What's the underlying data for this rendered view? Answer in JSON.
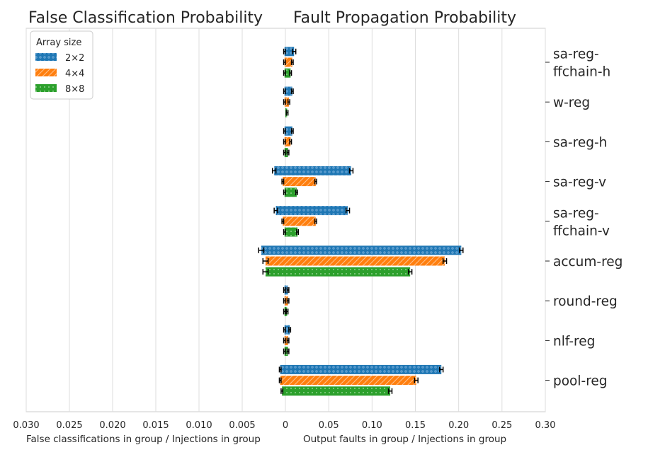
{
  "chart_data": {
    "type": "bar",
    "orientation": "horizontal",
    "titles": {
      "left": "False Classification Probability",
      "right": "Fault Propagation Probability"
    },
    "xlabels": {
      "left": "False classifications in group / Injections in group",
      "right": "Output faults in group / Injections in group"
    },
    "xlim_left": [
      0.03,
      0
    ],
    "xlim_right": [
      0,
      0.3
    ],
    "left_ticks": [
      {
        "label": "0.030",
        "value": 0.03
      },
      {
        "label": "0.025",
        "value": 0.025
      },
      {
        "label": "0.020",
        "value": 0.02
      },
      {
        "label": "0.015",
        "value": 0.015
      },
      {
        "label": "0.010",
        "value": 0.01
      },
      {
        "label": "0.005",
        "value": 0.005
      }
    ],
    "zero_tick": "0",
    "right_ticks": [
      {
        "label": "0.05",
        "value": 0.05
      },
      {
        "label": "0.10",
        "value": 0.1
      },
      {
        "label": "0.15",
        "value": 0.15
      },
      {
        "label": "0.20",
        "value": 0.2
      },
      {
        "label": "0.25",
        "value": 0.25
      },
      {
        "label": "0.30",
        "value": 0.3
      }
    ],
    "legend": {
      "title": "Array size",
      "position": "top-left",
      "entries": [
        "2×2",
        "4×4",
        "8×8"
      ]
    },
    "series_colors": [
      "#1f77b4",
      "#ff7f0e",
      "#2ca02c"
    ],
    "groups": [
      {
        "label": [
          "sa-reg-",
          "ffchain-h"
        ],
        "false_class": [
          0.0001,
          0.0001,
          0.0001
        ],
        "false_err": [
          0.0001,
          0.0001,
          0.0001
        ],
        "fault_prop": [
          0.01,
          0.008,
          0.006
        ],
        "fault_err": [
          0.002,
          0.001,
          0.001
        ]
      },
      {
        "label": [
          "w-reg"
        ],
        "false_class": [
          0.0001,
          0.0001,
          0.0
        ],
        "false_err": [
          0.0001,
          0.0001,
          0.0
        ],
        "fault_prop": [
          0.008,
          0.004,
          0.002
        ],
        "fault_err": [
          0.001,
          0.001,
          0.001
        ]
      },
      {
        "label": [
          "sa-reg-h"
        ],
        "false_class": [
          0.0001,
          0.0001,
          0.0001
        ],
        "false_err": [
          0.0001,
          0.0001,
          0.0001
        ],
        "fault_prop": [
          0.008,
          0.006,
          0.003
        ],
        "fault_err": [
          0.001,
          0.001,
          0.001
        ]
      },
      {
        "label": [
          "sa-reg-v"
        ],
        "false_class": [
          0.0013,
          0.0003,
          0.0001
        ],
        "false_err": [
          0.0002,
          0.0001,
          0.0001
        ],
        "fault_prop": [
          0.076,
          0.035,
          0.013
        ],
        "fault_err": [
          0.002,
          0.001,
          0.001
        ]
      },
      {
        "label": [
          "sa-reg-",
          "ffchain-v"
        ],
        "false_class": [
          0.0011,
          0.0003,
          0.0001
        ],
        "false_err": [
          0.0002,
          0.0001,
          0.0001
        ],
        "fault_prop": [
          0.072,
          0.035,
          0.014
        ],
        "fault_err": [
          0.002,
          0.001,
          0.001
        ]
      },
      {
        "label": [
          "accum-reg"
        ],
        "false_class": [
          0.0028,
          0.0023,
          0.0023
        ],
        "false_err": [
          0.0003,
          0.0003,
          0.0003
        ],
        "fault_prop": [
          0.203,
          0.184,
          0.144
        ],
        "fault_err": [
          0.002,
          0.002,
          0.002
        ]
      },
      {
        "label": [
          "round-reg"
        ],
        "false_class": [
          0.0001,
          0.0001,
          0.0001
        ],
        "false_err": [
          0.0001,
          0.0001,
          0.0001
        ],
        "fault_prop": [
          0.003,
          0.003,
          0.002
        ],
        "fault_err": [
          0.001,
          0.001,
          0.001
        ]
      },
      {
        "label": [
          "nlf-reg"
        ],
        "false_class": [
          0.0001,
          0.0001,
          0.0001
        ],
        "false_err": [
          0.0001,
          0.0001,
          0.0001
        ],
        "fault_prop": [
          0.005,
          0.003,
          0.003
        ],
        "fault_err": [
          0.001,
          0.001,
          0.001
        ]
      },
      {
        "label": [
          "pool-reg"
        ],
        "false_class": [
          0.0006,
          0.0006,
          0.0004
        ],
        "false_err": [
          0.0001,
          0.0001,
          0.0001
        ],
        "fault_prop": [
          0.18,
          0.151,
          0.121
        ],
        "fault_err": [
          0.002,
          0.002,
          0.002
        ]
      }
    ]
  }
}
